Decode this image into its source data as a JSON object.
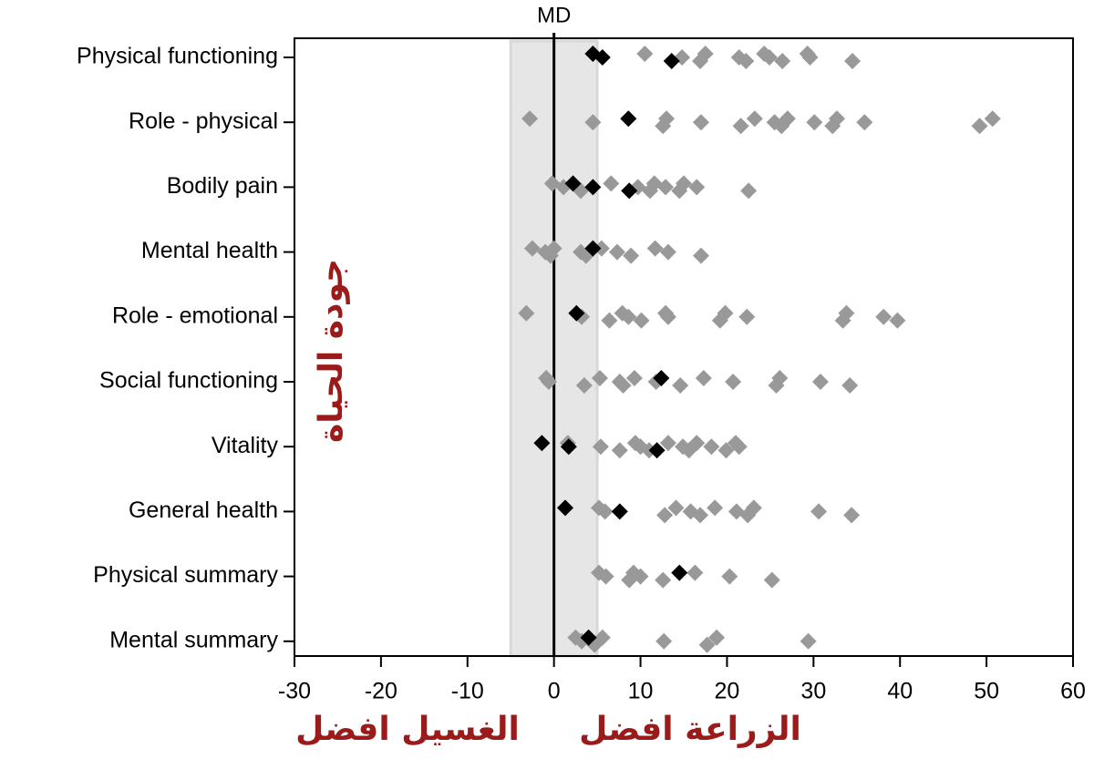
{
  "chart_data": {
    "type": "scatter",
    "categories": [
      "Physical functioning",
      "Role - physical",
      "Bodily pain",
      "Mental health",
      "Role - emotional",
      "Social functioning",
      "Vitality",
      "General health",
      "Physical summary",
      "Mental summary"
    ],
    "series": [
      {
        "color": "#999999",
        "values": [
          [
            10.5,
            14.8,
            16.9,
            17.5,
            21.4,
            22.2,
            24.3,
            24.9,
            26.4,
            29.3,
            29.6,
            34.5
          ],
          [
            -2.8,
            4.5,
            12.6,
            13.0,
            17.0,
            21.6,
            23.2,
            25.5,
            26.3,
            27.0,
            30.1,
            32.2,
            32.7,
            35.9,
            49.2,
            50.7
          ],
          [
            -0.2,
            1.1,
            3.1,
            6.6,
            9.7,
            11.1,
            11.6,
            12.9,
            14.5,
            15.0,
            16.5,
            22.5
          ],
          [
            -2.5,
            -1.0,
            -0.4,
            0,
            3.1,
            3.7,
            5.5,
            7.3,
            8.9,
            11.7,
            13.2,
            17.0
          ],
          [
            -3.2,
            3.2,
            6.4,
            7.9,
            8.6,
            10.1,
            12.9,
            13.2,
            19.2,
            19.8,
            22.3,
            33.4,
            33.8,
            38.1,
            39.7
          ],
          [
            -0.9,
            -0.6,
            3.5,
            5.3,
            7.6,
            8.0,
            9.3,
            11.8,
            14.6,
            17.3,
            20.7,
            25.7,
            26.1,
            30.8,
            34.2
          ],
          [
            1.6,
            5.4,
            7.6,
            9.4,
            10.0,
            11.0,
            13.2,
            14.9,
            15.6,
            16.5,
            18.2,
            19.9,
            21.0,
            21.4
          ],
          [
            5.2,
            5.9,
            12.8,
            14.1,
            15.8,
            16.9,
            18.6,
            21.1,
            22.4,
            23.1,
            30.6,
            34.4
          ],
          [
            5.2,
            6.0,
            8.7,
            9.2,
            10.0,
            12.6,
            16.3,
            20.3,
            25.2
          ],
          [
            2.5,
            3.2,
            4.7,
            5.6,
            12.7,
            17.7,
            18.8,
            29.4
          ]
        ]
      },
      {
        "color": "#000000",
        "values": [
          [
            4.5,
            5.6,
            13.6
          ],
          [
            8.6
          ],
          [
            2.2,
            4.5,
            8.7
          ],
          [
            4.5
          ],
          [
            2.6
          ],
          [
            12.4
          ],
          [
            -1.4,
            1.7,
            11.9
          ],
          [
            1.3,
            7.6
          ],
          [
            14.5
          ],
          [
            4.0
          ]
        ]
      }
    ],
    "xlim": [
      -30,
      60
    ],
    "xticks": [
      -30,
      -20,
      -10,
      0,
      10,
      20,
      30,
      40,
      50,
      60
    ],
    "reference_line": {
      "label": "MD",
      "value": 0
    },
    "band": [
      -5,
      5
    ],
    "y_axis_title": "جودة الحياة",
    "left_label": "الغسيل افضل",
    "right_label": "الزراعة افضل"
  }
}
